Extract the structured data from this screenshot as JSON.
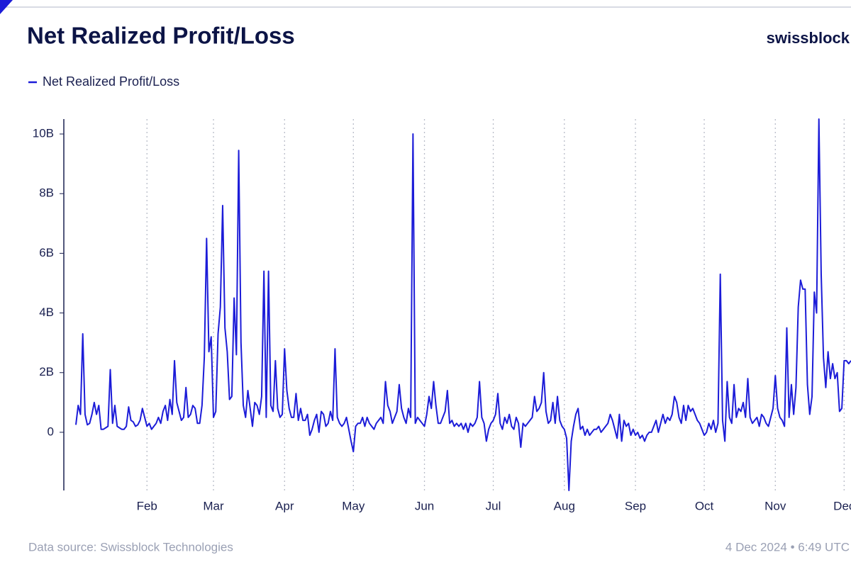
{
  "logo": "swissblock",
  "footer": {
    "source": "Data source: Swissblock Technologies",
    "timestamp": "4 Dec 2024 • 6:49 UTC"
  },
  "chart_data": {
    "type": "line",
    "title": "Net Realized Profit/Loss",
    "grid_x": true,
    "ylim": [
      -1.95,
      10.5
    ],
    "yticks": [
      0,
      {
        "value": 2,
        "label": "2B"
      },
      {
        "value": 4,
        "label": "4B"
      },
      {
        "value": 6,
        "label": "6B"
      },
      {
        "value": 8,
        "label": "8B"
      },
      {
        "value": 10,
        "label": "10B"
      }
    ],
    "categories": [
      null,
      null,
      null,
      null,
      null,
      null,
      null,
      null,
      null,
      null,
      null,
      null,
      null,
      null,
      null,
      null,
      null,
      null,
      null,
      null,
      null,
      null,
      null,
      null,
      null,
      null,
      null,
      null,
      null,
      null,
      null,
      "Feb",
      null,
      null,
      null,
      null,
      null,
      null,
      null,
      null,
      null,
      null,
      null,
      null,
      null,
      null,
      null,
      null,
      null,
      null,
      null,
      null,
      null,
      null,
      null,
      null,
      null,
      null,
      null,
      null,
      "Mar",
      null,
      null,
      null,
      null,
      null,
      null,
      null,
      null,
      null,
      null,
      null,
      null,
      null,
      null,
      null,
      null,
      null,
      null,
      null,
      null,
      null,
      null,
      null,
      null,
      null,
      null,
      null,
      null,
      null,
      null,
      "Apr",
      null,
      null,
      null,
      null,
      null,
      null,
      null,
      null,
      null,
      null,
      null,
      null,
      null,
      null,
      null,
      null,
      null,
      null,
      null,
      null,
      null,
      null,
      null,
      null,
      null,
      null,
      null,
      null,
      null,
      "May",
      null,
      null,
      null,
      null,
      null,
      null,
      null,
      null,
      null,
      null,
      null,
      null,
      null,
      null,
      null,
      null,
      null,
      null,
      null,
      null,
      null,
      null,
      null,
      null,
      null,
      null,
      null,
      null,
      null,
      null,
      "Jun",
      null,
      null,
      null,
      null,
      null,
      null,
      null,
      null,
      null,
      null,
      null,
      null,
      null,
      null,
      null,
      null,
      null,
      null,
      null,
      null,
      null,
      null,
      null,
      null,
      null,
      null,
      null,
      null,
      null,
      "Jul",
      null,
      null,
      null,
      null,
      null,
      null,
      null,
      null,
      null,
      null,
      null,
      null,
      null,
      null,
      null,
      null,
      null,
      null,
      null,
      null,
      null,
      null,
      null,
      null,
      null,
      null,
      null,
      null,
      null,
      null,
      "Aug",
      null,
      null,
      null,
      null,
      null,
      null,
      null,
      null,
      null,
      null,
      null,
      null,
      null,
      null,
      null,
      null,
      null,
      null,
      null,
      null,
      null,
      null,
      null,
      null,
      null,
      null,
      null,
      null,
      null,
      null,
      "Sep",
      null,
      null,
      null,
      null,
      null,
      null,
      null,
      null,
      null,
      null,
      null,
      null,
      null,
      null,
      null,
      null,
      null,
      null,
      null,
      null,
      null,
      null,
      null,
      null,
      null,
      null,
      null,
      null,
      null,
      "Oct",
      null,
      null,
      null,
      null,
      null,
      null,
      null,
      null,
      null,
      null,
      null,
      null,
      null,
      null,
      null,
      null,
      null,
      null,
      null,
      null,
      null,
      null,
      null,
      null,
      null,
      null,
      null,
      null,
      null,
      null,
      "Nov",
      null,
      null,
      null,
      null,
      null,
      null,
      null,
      null,
      null,
      null,
      null,
      null,
      null,
      null,
      null,
      null,
      null,
      null,
      null,
      null,
      null,
      null,
      null,
      null,
      null,
      null,
      null,
      null,
      null,
      "Dec",
      null,
      null,
      null
    ],
    "series": [
      {
        "name": "Net Realized Profit/Loss",
        "color": "#1c1cd8",
        "values": [
          0.25,
          0.9,
          0.6,
          3.3,
          0.6,
          0.25,
          0.3,
          0.6,
          1.0,
          0.6,
          0.9,
          0.1,
          0.1,
          0.15,
          0.2,
          2.1,
          0.3,
          0.9,
          0.2,
          0.15,
          0.1,
          0.1,
          0.2,
          0.85,
          0.4,
          0.35,
          0.2,
          0.25,
          0.4,
          0.8,
          0.5,
          0.2,
          0.3,
          0.1,
          0.2,
          0.3,
          0.5,
          0.3,
          0.7,
          0.9,
          0.4,
          1.1,
          0.6,
          2.4,
          1.0,
          0.7,
          0.4,
          0.5,
          1.5,
          0.5,
          0.6,
          0.9,
          0.8,
          0.3,
          0.3,
          0.9,
          2.5,
          6.5,
          2.7,
          3.2,
          0.5,
          0.7,
          3.3,
          4.2,
          7.6,
          3.5,
          2.7,
          1.1,
          1.2,
          4.5,
          2.6,
          9.45,
          3.0,
          0.9,
          0.5,
          1.4,
          0.8,
          0.2,
          1.0,
          0.9,
          0.6,
          1.2,
          5.4,
          0.5,
          5.4,
          0.9,
          0.7,
          2.4,
          0.8,
          0.5,
          0.6,
          2.8,
          1.4,
          0.8,
          0.5,
          0.5,
          1.3,
          0.4,
          0.8,
          0.4,
          0.4,
          0.6,
          -0.1,
          0.1,
          0.4,
          0.6,
          0.0,
          0.7,
          0.6,
          0.2,
          0.3,
          0.7,
          0.4,
          2.8,
          0.5,
          0.3,
          0.2,
          0.3,
          0.5,
          0.1,
          -0.3,
          -0.65,
          0.2,
          0.3,
          0.3,
          0.5,
          0.2,
          0.5,
          0.3,
          0.2,
          0.1,
          0.3,
          0.4,
          0.5,
          0.3,
          1.7,
          0.9,
          0.7,
          0.3,
          0.5,
          0.7,
          1.6,
          0.8,
          0.5,
          0.3,
          0.8,
          0.5,
          10.0,
          0.3,
          0.5,
          0.4,
          0.3,
          0.2,
          0.6,
          1.2,
          0.8,
          1.7,
          0.9,
          0.3,
          0.3,
          0.5,
          0.7,
          1.4,
          0.3,
          0.4,
          0.2,
          0.3,
          0.2,
          0.3,
          0.1,
          0.3,
          0.0,
          0.3,
          0.2,
          0.3,
          0.5,
          1.7,
          0.5,
          0.3,
          -0.3,
          0.1,
          0.3,
          0.4,
          0.6,
          1.3,
          0.3,
          0.1,
          0.5,
          0.3,
          0.6,
          0.2,
          0.1,
          0.5,
          0.3,
          -0.5,
          0.3,
          0.2,
          0.3,
          0.4,
          0.5,
          1.2,
          0.7,
          0.8,
          1.0,
          2.0,
          0.7,
          0.3,
          0.4,
          1.0,
          0.3,
          1.2,
          0.4,
          0.2,
          0.1,
          -0.2,
          -1.95,
          -0.3,
          0.2,
          0.6,
          0.8,
          0.1,
          0.2,
          -0.1,
          0.1,
          -0.1,
          0.0,
          0.1,
          0.1,
          0.2,
          0.0,
          0.1,
          0.2,
          0.3,
          0.6,
          0.4,
          0.1,
          -0.2,
          0.6,
          -0.3,
          0.4,
          0.2,
          0.3,
          -0.1,
          0.1,
          -0.1,
          0.0,
          -0.2,
          -0.1,
          -0.3,
          -0.1,
          0.0,
          0.0,
          0.2,
          0.4,
          0.0,
          0.3,
          0.6,
          0.3,
          0.5,
          0.4,
          0.6,
          1.2,
          1.0,
          0.5,
          0.3,
          0.9,
          0.4,
          0.9,
          0.7,
          0.8,
          0.6,
          0.4,
          0.3,
          0.1,
          -0.1,
          0.0,
          0.3,
          0.1,
          0.4,
          0.0,
          0.3,
          5.3,
          0.4,
          -0.3,
          1.7,
          0.5,
          0.3,
          1.6,
          0.5,
          0.8,
          0.7,
          1.0,
          0.5,
          1.8,
          0.5,
          0.3,
          0.4,
          0.5,
          0.2,
          0.6,
          0.5,
          0.3,
          0.2,
          0.5,
          0.8,
          1.9,
          0.8,
          0.5,
          0.4,
          0.2,
          3.5,
          0.5,
          1.6,
          0.6,
          1.5,
          4.2,
          5.1,
          4.8,
          4.8,
          1.6,
          0.6,
          1.2,
          4.7,
          4.0,
          10.5,
          5.3,
          2.5,
          1.5,
          2.7,
          1.8,
          2.3,
          1.8,
          2.0,
          0.7,
          0.8,
          2.4,
          2.4,
          2.3,
          2.4
        ]
      }
    ]
  }
}
